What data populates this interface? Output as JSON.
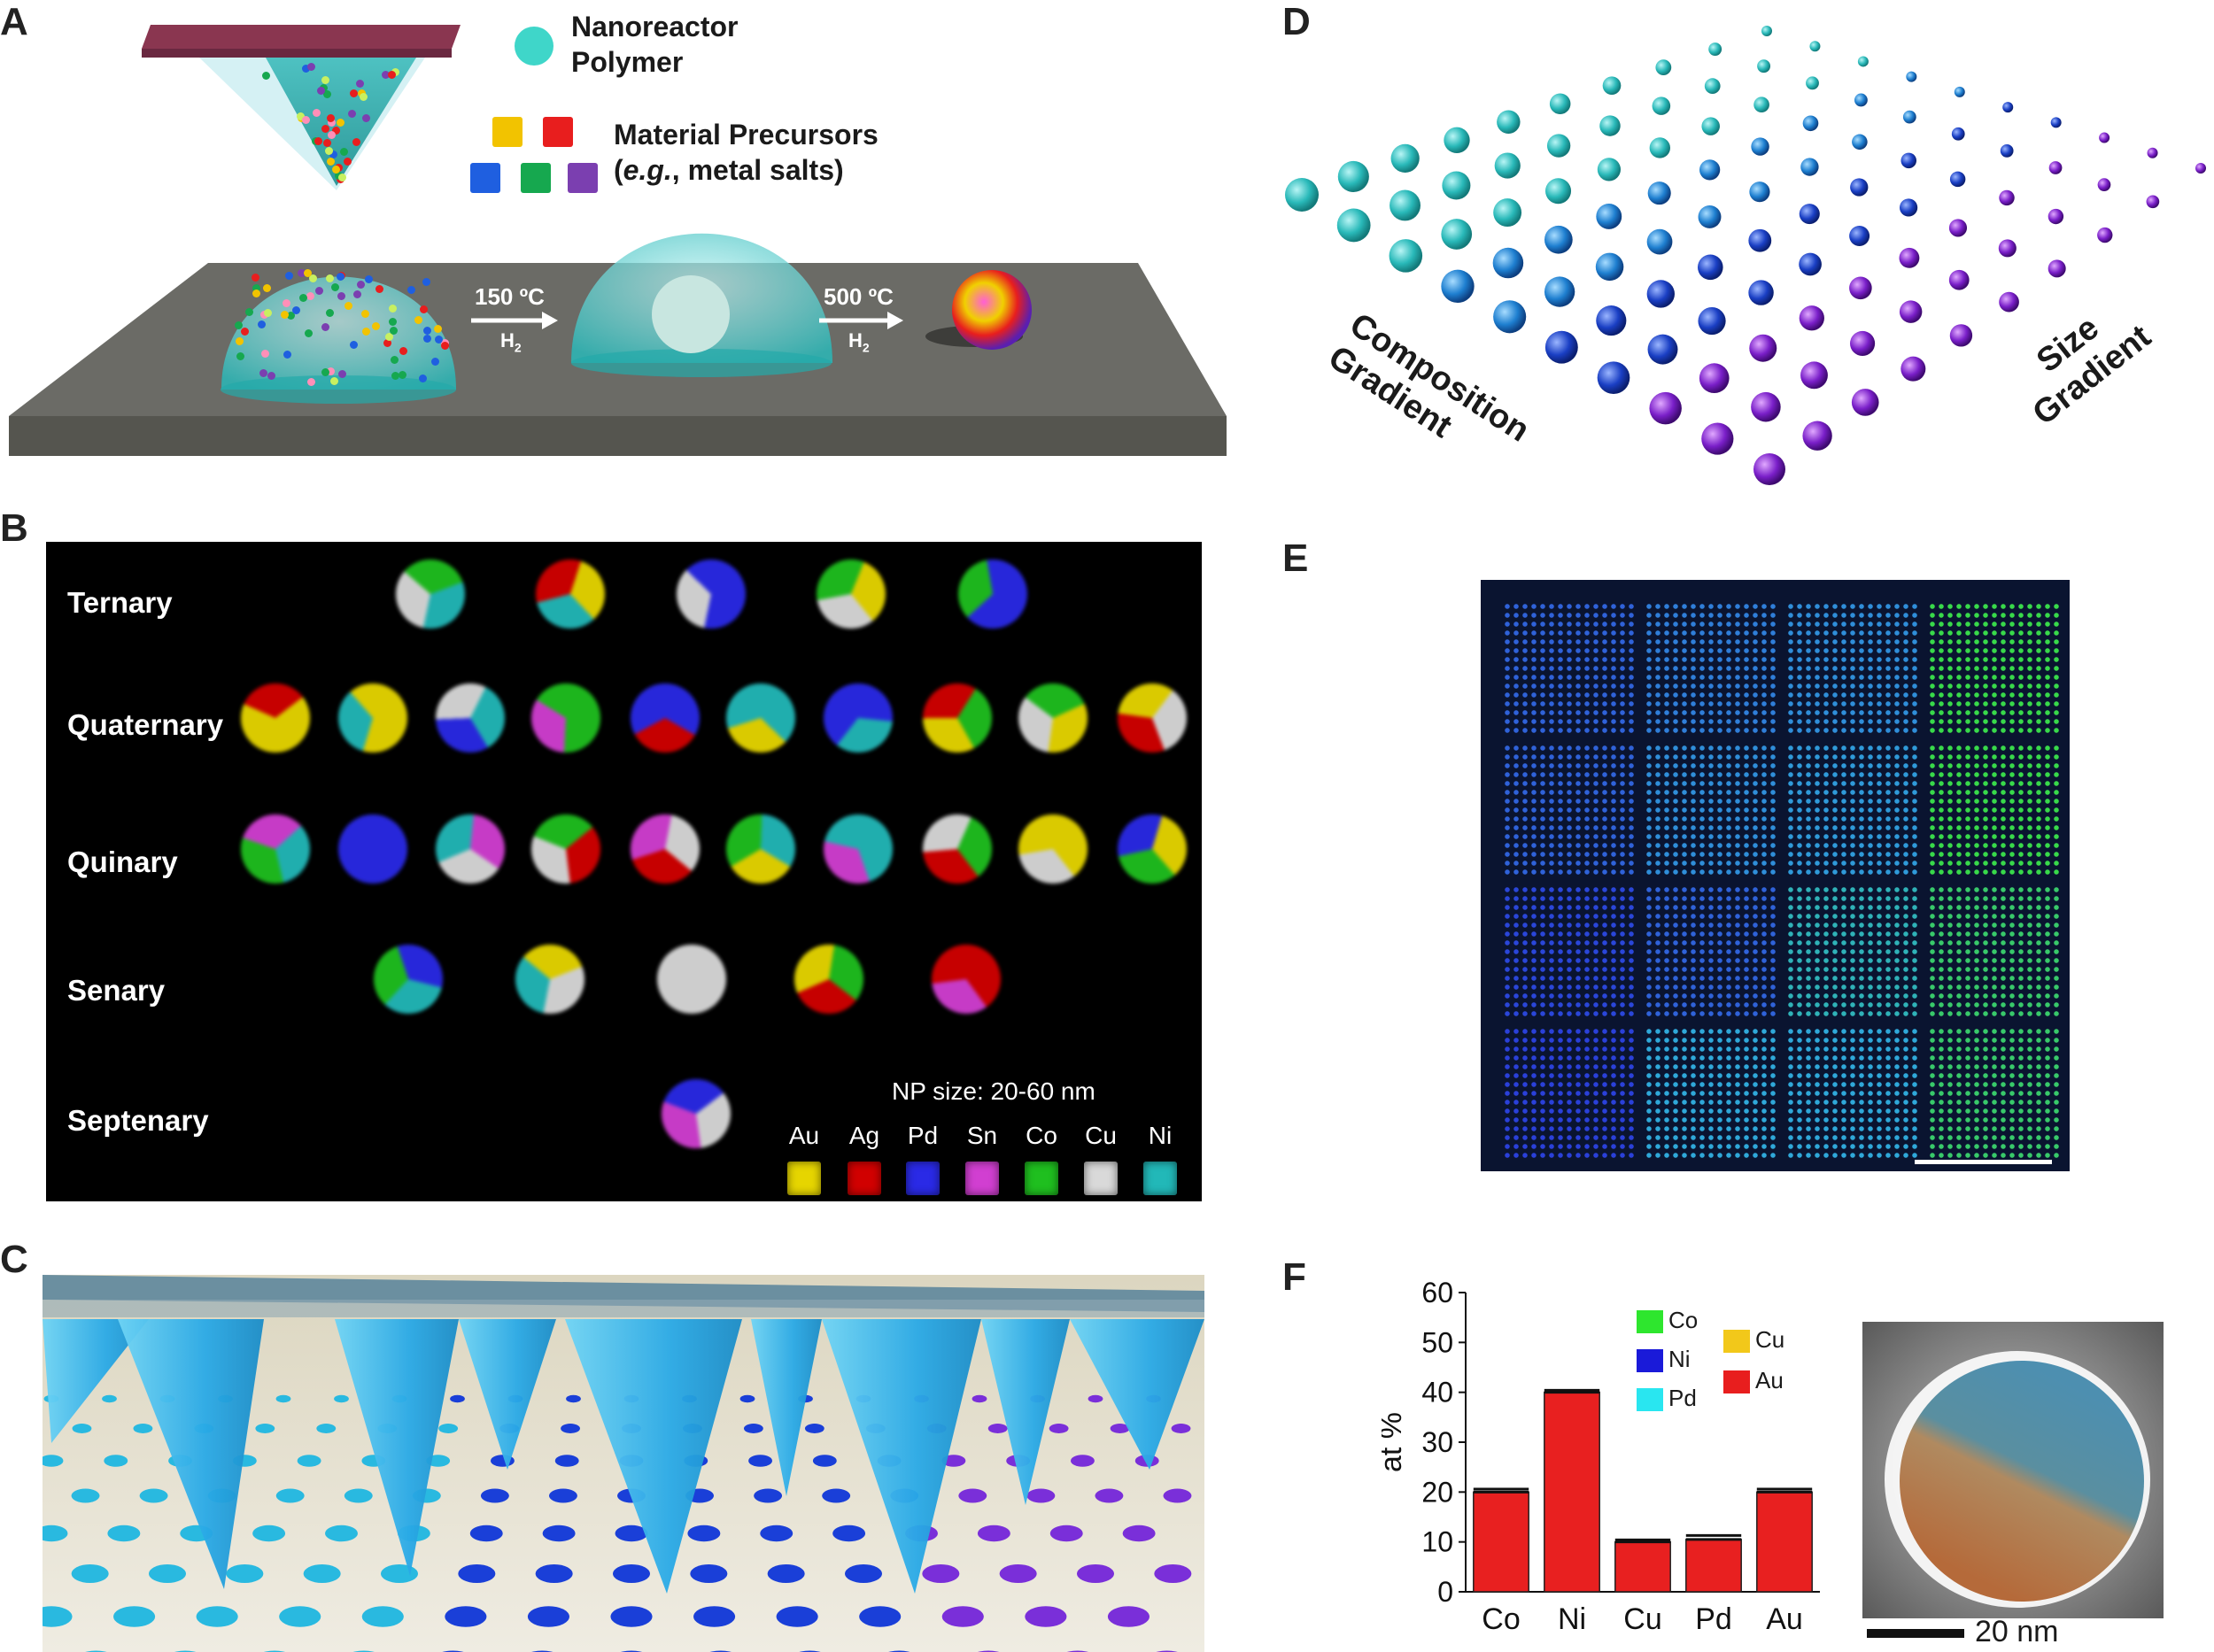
{
  "panels": {
    "a": "A",
    "b": "B",
    "c": "C",
    "d": "D",
    "e": "E",
    "f": "F"
  },
  "panelA": {
    "legend_nanoreactor": [
      "Nanoreactor",
      "Polymer"
    ],
    "legend_precursors_line1": "Material Precursors",
    "legend_precursors_line2_prefix": "(",
    "legend_precursors_line2_italic": "e.g.",
    "legend_precursors_line2_suffix": ", metal salts)",
    "step1_temp": "150 ºC",
    "step1_gas": "H",
    "step1_gas_sub": "2",
    "step2_temp": "500 ºC",
    "step2_gas": "H",
    "step2_gas_sub": "2",
    "colors": {
      "cantilever": "#8a3650",
      "polymer": "#3fc9c9",
      "substrate": "#6b6b66",
      "precursor_squares": [
        "#f2c300",
        "#e81e1e",
        "#1f5fe0",
        "#16a84f",
        "#7b3fb0"
      ]
    }
  },
  "panelB": {
    "rows": [
      "Ternary",
      "Quaternary",
      "Quinary",
      "Senary",
      "Septenary"
    ],
    "size_note": "NP size: 20-60 nm",
    "elements": [
      "Au",
      "Ag",
      "Pd",
      "Sn",
      "Co",
      "Cu",
      "Ni"
    ],
    "element_colors": [
      "#e6d500",
      "#d10000",
      "#2a2ae6",
      "#d13fd1",
      "#1fbf1f",
      "#d9d9d9",
      "#22b8b8"
    ]
  },
  "panelD": {
    "label_left": [
      "Composition",
      "Gradient"
    ],
    "label_right": [
      "Size",
      "Gradient"
    ],
    "colors": {
      "teal": "#29b9b9",
      "blue": "#1a3fc4",
      "purple": "#7a1fc9"
    }
  },
  "panelE": {
    "colors": {
      "background": "#0a1430",
      "blue": "#2e5de0",
      "green": "#3fd93f",
      "cyan": "#2fc3d9"
    }
  },
  "panelF": {
    "legend_map": [
      "Co",
      "Ni",
      "Pd",
      "Cu",
      "Au"
    ],
    "legend_map_colors": [
      "#2ee62e",
      "#1a1ad9",
      "#29e6f0",
      "#f2c81a",
      "#e81e1e"
    ],
    "scale_bar": "20 nm"
  },
  "chart_data": {
    "type": "bar",
    "categories": [
      "Co",
      "Ni",
      "Cu",
      "Pd",
      "Au"
    ],
    "values": [
      20,
      40,
      10,
      10.5,
      20
    ],
    "errors": [
      0.6,
      0.4,
      0.4,
      0.8,
      0.6
    ],
    "ylabel": "at %",
    "xlabel": "",
    "ylim": [
      0,
      60
    ],
    "yticks": [
      0,
      10,
      20,
      30,
      40,
      50,
      60
    ],
    "bar_color": "#e82020",
    "grid": false
  }
}
